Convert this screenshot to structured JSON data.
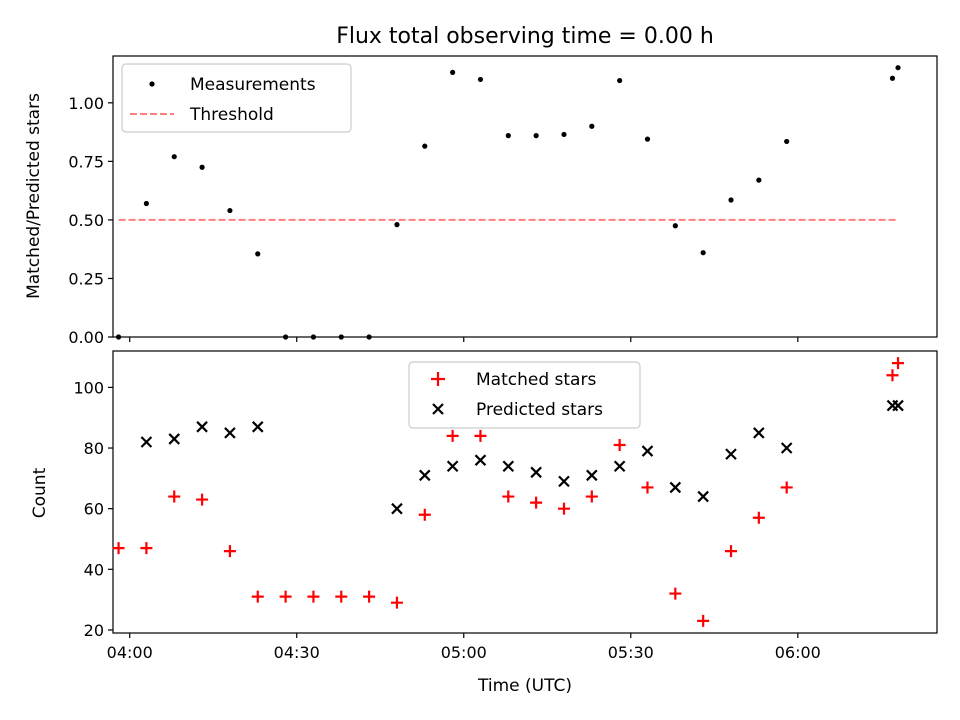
{
  "colors": {
    "measurement": "#000000",
    "threshold": "#ff7f7f",
    "matched": "#ff0000",
    "predicted": "#000000",
    "axes": "#000000",
    "background": "#ffffff"
  },
  "chart_data": [
    {
      "type": "scatter",
      "title": "Flux total observing time = 0.00 h",
      "xlabel": "",
      "ylabel": "Matched/Predicted stars",
      "xlim": [
        "03:57",
        "06:25"
      ],
      "ylim": [
        0,
        1.2
      ],
      "yticks": [
        0.0,
        0.25,
        0.5,
        0.75,
        1.0
      ],
      "ytick_labels": [
        "0.00",
        "0.25",
        "0.50",
        "0.75",
        "1.00"
      ],
      "xticks": [
        "04:00",
        "04:30",
        "05:00",
        "05:30",
        "06:00"
      ],
      "x_tick_labels_shown": false,
      "grid": false,
      "legend_position": "upper-left",
      "series": [
        {
          "name": "Measurements",
          "kind": "dots",
          "x": [
            "03:58",
            "04:03",
            "04:08",
            "04:13",
            "04:18",
            "04:23",
            "04:28",
            "04:33",
            "04:38",
            "04:43",
            "04:48",
            "04:53",
            "04:58",
            "05:03",
            "05:08",
            "05:13",
            "05:18",
            "05:23",
            "05:28",
            "05:33",
            "05:38",
            "05:43",
            "05:48",
            "05:53",
            "05:58",
            "06:17",
            "06:18"
          ],
          "y": [
            0.0,
            0.57,
            0.77,
            0.725,
            0.54,
            0.355,
            0.0,
            0.0,
            0.0,
            0.0,
            0.48,
            0.815,
            1.13,
            1.1,
            0.86,
            0.86,
            0.865,
            0.9,
            1.095,
            0.845,
            0.475,
            0.36,
            0.585,
            0.67,
            0.835,
            1.105,
            1.15
          ]
        },
        {
          "name": "Threshold",
          "kind": "dashed-line",
          "x": [
            "03:58",
            "06:18"
          ],
          "y": [
            0.5,
            0.5
          ]
        }
      ]
    },
    {
      "type": "scatter",
      "xlabel": "Time (UTC)",
      "ylabel": "Count",
      "xlim": [
        "03:57",
        "06:25"
      ],
      "ylim": [
        19,
        112
      ],
      "yticks": [
        20,
        40,
        60,
        80,
        100
      ],
      "ytick_labels": [
        "20",
        "40",
        "60",
        "80",
        "100"
      ],
      "xticks": [
        "04:00",
        "04:30",
        "05:00",
        "05:30",
        "06:00"
      ],
      "xtick_labels": [
        "04:00",
        "04:30",
        "05:00",
        "05:30",
        "06:00"
      ],
      "grid": false,
      "legend_position": "upper-center",
      "series": [
        {
          "name": "Matched stars",
          "kind": "plus",
          "x": [
            "03:58",
            "04:03",
            "04:08",
            "04:13",
            "04:18",
            "04:23",
            "04:28",
            "04:33",
            "04:38",
            "04:43",
            "04:48",
            "04:53",
            "04:58",
            "05:03",
            "05:08",
            "05:13",
            "05:18",
            "05:23",
            "05:28",
            "05:33",
            "05:38",
            "05:43",
            "05:48",
            "05:53",
            "05:58",
            "06:17",
            "06:18"
          ],
          "y": [
            47,
            47,
            64,
            63,
            46,
            31,
            31,
            31,
            31,
            31,
            29,
            58,
            84,
            84,
            64,
            62,
            60,
            64,
            81,
            67,
            32,
            23,
            46,
            57,
            67,
            104,
            108
          ]
        },
        {
          "name": "Predicted stars",
          "kind": "x",
          "x": [
            "04:03",
            "04:08",
            "04:13",
            "04:18",
            "04:23",
            "04:48",
            "04:53",
            "04:58",
            "05:03",
            "05:08",
            "05:13",
            "05:18",
            "05:23",
            "05:28",
            "05:33",
            "05:38",
            "05:43",
            "05:48",
            "05:53",
            "05:58",
            "06:17",
            "06:18"
          ],
          "y": [
            82,
            83,
            87,
            85,
            87,
            60,
            71,
            74,
            76,
            74,
            72,
            69,
            71,
            74,
            79,
            67,
            64,
            78,
            85,
            80,
            94,
            94
          ]
        }
      ]
    }
  ]
}
